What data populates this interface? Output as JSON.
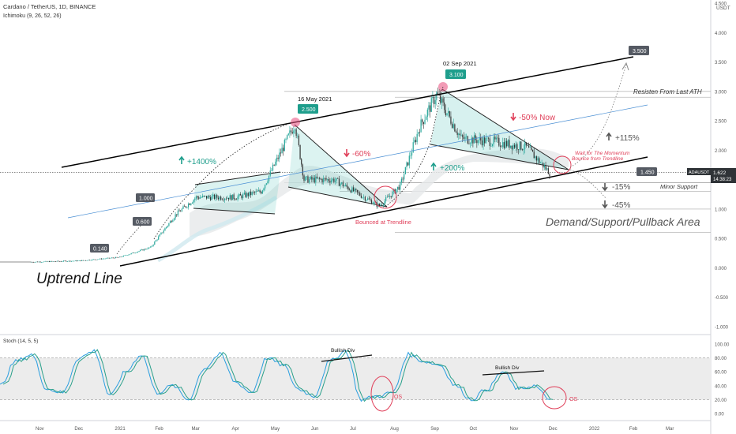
{
  "header": {
    "title": "Cardano / TetherUS, 1D, BINANCE",
    "indicator": "Ichimoku (9, 26, 52, 26)"
  },
  "price_axis": {
    "currency": "USDT",
    "tick_labels": [
      "4.500",
      "4.000",
      "3.500",
      "3.000",
      "2.500",
      "2.000",
      "1.500",
      "1.000",
      "0.500",
      "0.000",
      "-0.500",
      "-1.000"
    ],
    "current_price_label": "1.622",
    "countdown_label": "14:38:23",
    "symbol_tag": "ADAUSDT"
  },
  "time_axis": {
    "labels": [
      "Nov",
      "Dec",
      "2021",
      "Feb",
      "Mar",
      "Apr",
      "May",
      "Jun",
      "Jul",
      "Aug",
      "Sep",
      "Oct",
      "Nov",
      "Dec",
      "2022",
      "Feb",
      "Mar"
    ]
  },
  "stoch_panel": {
    "title": "Stoch (14, 5, 5)",
    "tick_labels": [
      "100.00",
      "80.00",
      "60.00",
      "40.00",
      "20.00",
      "0.00"
    ],
    "annotations": {
      "bullish_div_1": "Bullish Div",
      "bullish_div_2": "Bullish Div",
      "os_1": "OS",
      "os_2": "OS"
    },
    "colors": {
      "k_line": "#2a9ee0",
      "d_line": "#2aa08a",
      "band": "#ececec"
    }
  },
  "annotations": {
    "uptrend_line": "Uptrend Line",
    "date_may": "16 May 2021",
    "date_sep": "02 Sep 2021",
    "pct_1400": "+1400%",
    "pct_60": "-60%",
    "pct_200": "+200%",
    "pct_50_now": "-50% Now",
    "pct_115": "+115%",
    "pct_15": "-15%",
    "pct_45": "-45%",
    "bounced": "Bounced at Trendline",
    "wait_line1": "Wait for The Momentum",
    "wait_line2": "Bounce from Trendline",
    "resistance": "Resisten From Last ATH",
    "minor_support": "Minor Support",
    "demand_zone": "Demand/Support/Pullback Area"
  },
  "price_tags": {
    "p_0140": "0.140",
    "p_0600": "0.600",
    "p_1000": "1.000",
    "p_2500": "2.500",
    "p_3100": "3.100",
    "p_3500": "3.500",
    "p_1450": "1.450"
  },
  "colors": {
    "green": "#1e9e8c",
    "red": "#e0405a",
    "pink": "#e8487a",
    "dark_tag": "#555a63",
    "teal_fill": "#5ec8c0",
    "candle_up": "#26a69a",
    "candle_down": "#333333",
    "trend_line": "#000000",
    "mid_line": "#4a8fd4"
  },
  "chart_data": {
    "type": "candlestick",
    "symbol": "ADAUSDT",
    "interval": "1D",
    "price_axis_range": [
      -1.0,
      4.5
    ],
    "stoch_axis_range": [
      0,
      100
    ],
    "close_series": [
      {
        "t": "2020-10-25",
        "close": 0.1
      },
      {
        "t": "2020-12-01",
        "close": 0.12
      },
      {
        "t": "2021-01-01",
        "close": 0.18
      },
      {
        "t": "2021-01-25",
        "close": 0.35
      },
      {
        "t": "2021-02-13",
        "close": 0.9
      },
      {
        "t": "2021-03-01",
        "close": 1.2
      },
      {
        "t": "2021-04-01",
        "close": 1.2
      },
      {
        "t": "2021-04-20",
        "close": 1.3
      },
      {
        "t": "2021-05-16",
        "close": 2.45
      },
      {
        "t": "2021-05-23",
        "close": 1.5
      },
      {
        "t": "2021-06-15",
        "close": 1.5
      },
      {
        "t": "2021-07-20",
        "close": 1.05
      },
      {
        "t": "2021-08-05",
        "close": 1.4
      },
      {
        "t": "2021-08-20",
        "close": 2.4
      },
      {
        "t": "2021-09-02",
        "close": 2.95
      },
      {
        "t": "2021-09-21",
        "close": 2.2
      },
      {
        "t": "2021-10-15",
        "close": 2.15
      },
      {
        "t": "2021-11-10",
        "close": 2.05
      },
      {
        "t": "2021-11-28",
        "close": 1.62
      }
    ],
    "levels": {
      "resistance_last_ath": 3.0,
      "minor_support": 1.45,
      "demand_zone_top": 1.0,
      "demand_zone_bottom": 0.6
    },
    "stoch_k_series": [
      40,
      75,
      85,
      35,
      30,
      80,
      90,
      25,
      60,
      85,
      30,
      40,
      20,
      65,
      85,
      45,
      30,
      80,
      70,
      35,
      25,
      75,
      90,
      20,
      25,
      30,
      85,
      75,
      70,
      40,
      20,
      35,
      60,
      35,
      40,
      20
    ]
  }
}
